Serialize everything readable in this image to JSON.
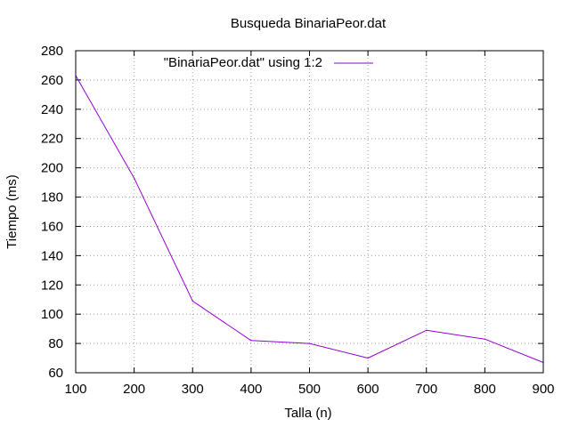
{
  "chart_data": {
    "type": "line",
    "title": "Busqueda BinariaPeor.dat",
    "xlabel": "Talla (n)",
    "ylabel": "Tiempo (ms)",
    "xlim": [
      100,
      900
    ],
    "ylim": [
      60,
      280
    ],
    "xticks": [
      "100",
      "200",
      "300",
      "400",
      "500",
      "600",
      "700",
      "800",
      "900"
    ],
    "yticks": [
      "60",
      "80",
      "100",
      "120",
      "140",
      "160",
      "180",
      "200",
      "220",
      "240",
      "260",
      "280"
    ],
    "grid": true,
    "legend_position": "top",
    "series": [
      {
        "name": "\"BinariaPeor.dat\" using 1:2",
        "color": "#9400d3",
        "x": [
          100,
          200,
          300,
          400,
          500,
          600,
          700,
          800,
          900
        ],
        "y": [
          263,
          193,
          109,
          82,
          80,
          70,
          89,
          83,
          67
        ]
      }
    ]
  }
}
